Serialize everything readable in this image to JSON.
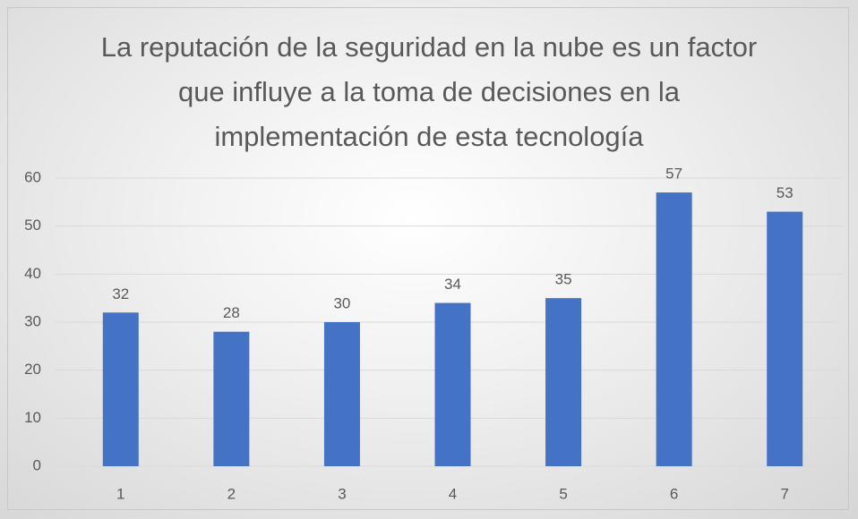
{
  "chart_data": {
    "type": "bar",
    "title": "La reputación de la seguridad en la nube es un factor que influye a la toma de decisiones en la implementación de esta tecnología",
    "categories": [
      "1",
      "2",
      "3",
      "4",
      "5",
      "6",
      "7"
    ],
    "values": [
      32,
      28,
      30,
      34,
      35,
      57,
      53
    ],
    "color": "#4472c4",
    "ylim": [
      0,
      60
    ],
    "yticks": [
      0,
      10,
      20,
      30,
      40,
      50,
      60
    ],
    "grid": true
  }
}
